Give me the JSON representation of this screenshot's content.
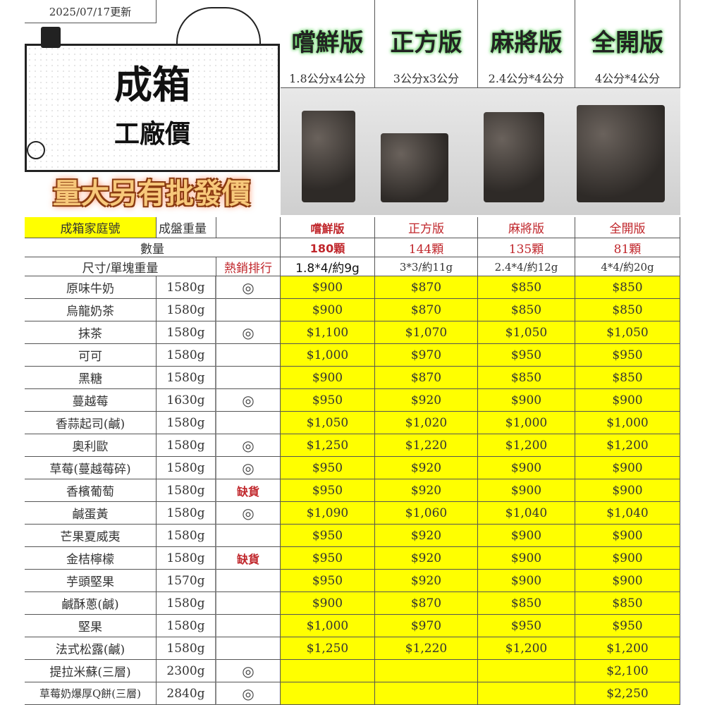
{
  "update_date": "2025/07/17更新",
  "banner": {
    "line1": "成箱",
    "line2": "工廠價",
    "promo": "量大另有批發價"
  },
  "versions": [
    {
      "name": "嚐鮮版",
      "dims": "1.8公分x4公分",
      "count": "180顆",
      "size": "1.8*4/約9g",
      "highlight": true
    },
    {
      "name": "正方版",
      "dims": "3公分x3公分",
      "count": "144顆",
      "size": "3*3/約11g",
      "highlight": false
    },
    {
      "name": "麻將版",
      "dims": "2.4公分*4公分",
      "count": "135顆",
      "size": "2.4*4/約12g",
      "highlight": false
    },
    {
      "name": "全開版",
      "dims": "4公分*4公分",
      "count": "81顆",
      "size": "4*4/約20g",
      "highlight": false
    }
  ],
  "headers": {
    "family": "成箱家庭號",
    "weight": "成盤重量",
    "quantity": "數量",
    "size": "尺寸/單塊重量",
    "rank": "熱銷排行"
  },
  "rows": [
    {
      "name": "原味牛奶",
      "weight": "1580g",
      "rank": "◎",
      "rank_red": true,
      "prices": [
        "$900",
        "$870",
        "$850",
        "$850"
      ]
    },
    {
      "name": "烏龍奶茶",
      "weight": "1580g",
      "rank": "",
      "prices": [
        "$900",
        "$870",
        "$850",
        "$850"
      ]
    },
    {
      "name": "抹茶",
      "weight": "1580g",
      "rank": "◎",
      "prices": [
        "$1,100",
        "$1,070",
        "$1,050",
        "$1,050"
      ]
    },
    {
      "name": "可可",
      "weight": "1580g",
      "rank": "",
      "prices": [
        "$1,000",
        "$970",
        "$950",
        "$950"
      ]
    },
    {
      "name": "黑糖",
      "weight": "1580g",
      "rank": "",
      "prices": [
        "$900",
        "$870",
        "$850",
        "$850"
      ]
    },
    {
      "name": "蔓越莓",
      "weight": "1630g",
      "rank": "◎",
      "rank_red": true,
      "prices": [
        "$950",
        "$920",
        "$900",
        "$900"
      ]
    },
    {
      "name": "香蒜起司(鹹)",
      "weight": "1580g",
      "rank": "",
      "prices": [
        "$1,050",
        "$1,020",
        "$1,000",
        "$1,000"
      ]
    },
    {
      "name": "奧利歐",
      "weight": "1580g",
      "rank": "◎",
      "rank_red": true,
      "prices": [
        "$1,250",
        "$1,220",
        "$1,200",
        "$1,200"
      ]
    },
    {
      "name": "草莓(蔓越莓碎)",
      "weight": "1580g",
      "rank": "◎",
      "rank_red": true,
      "prices": [
        "$950",
        "$920",
        "$900",
        "$900"
      ]
    },
    {
      "name": "香檳葡萄",
      "weight": "1580g",
      "rank": "缺貨",
      "rank_red": true,
      "prices": [
        "$950",
        "$920",
        "$900",
        "$900"
      ]
    },
    {
      "name": "鹹蛋黃",
      "weight": "1580g",
      "rank": "◎",
      "prices": [
        "$1,090",
        "$1,060",
        "$1,040",
        "$1,040"
      ]
    },
    {
      "name": "芒果夏威夷",
      "weight": "1580g",
      "rank": "",
      "prices": [
        "$950",
        "$920",
        "$900",
        "$900"
      ]
    },
    {
      "name": "金桔檸檬",
      "weight": "1580g",
      "rank": "缺貨",
      "rank_red": true,
      "prices": [
        "$950",
        "$920",
        "$900",
        "$900"
      ]
    },
    {
      "name": "芋頭堅果",
      "weight": "1570g",
      "rank": "",
      "prices": [
        "$950",
        "$920",
        "$900",
        "$900"
      ]
    },
    {
      "name": "鹹酥蔥(鹹)",
      "weight": "1580g",
      "rank": "",
      "prices": [
        "$900",
        "$870",
        "$850",
        "$850"
      ]
    },
    {
      "name": "堅果",
      "weight": "1580g",
      "rank": "",
      "prices": [
        "$1,000",
        "$970",
        "$950",
        "$950"
      ]
    },
    {
      "name": "法式松露(鹹)",
      "weight": "1580g",
      "rank": "",
      "prices": [
        "$1,250",
        "$1,220",
        "$1,200",
        "$1,200"
      ]
    },
    {
      "name": "提拉米蘇(三層)",
      "weight": "2300g",
      "rank": "◎",
      "prices": [
        "",
        "",
        "",
        "$2,100"
      ]
    },
    {
      "name": "草莓奶爆厚Q餅(三層)",
      "weight": "2840g",
      "rank": "◎",
      "prices": [
        "",
        "",
        "",
        "$2,250"
      ]
    }
  ],
  "colors": {
    "price_bg": "#ffff00",
    "accent_red": "#c0262b"
  }
}
